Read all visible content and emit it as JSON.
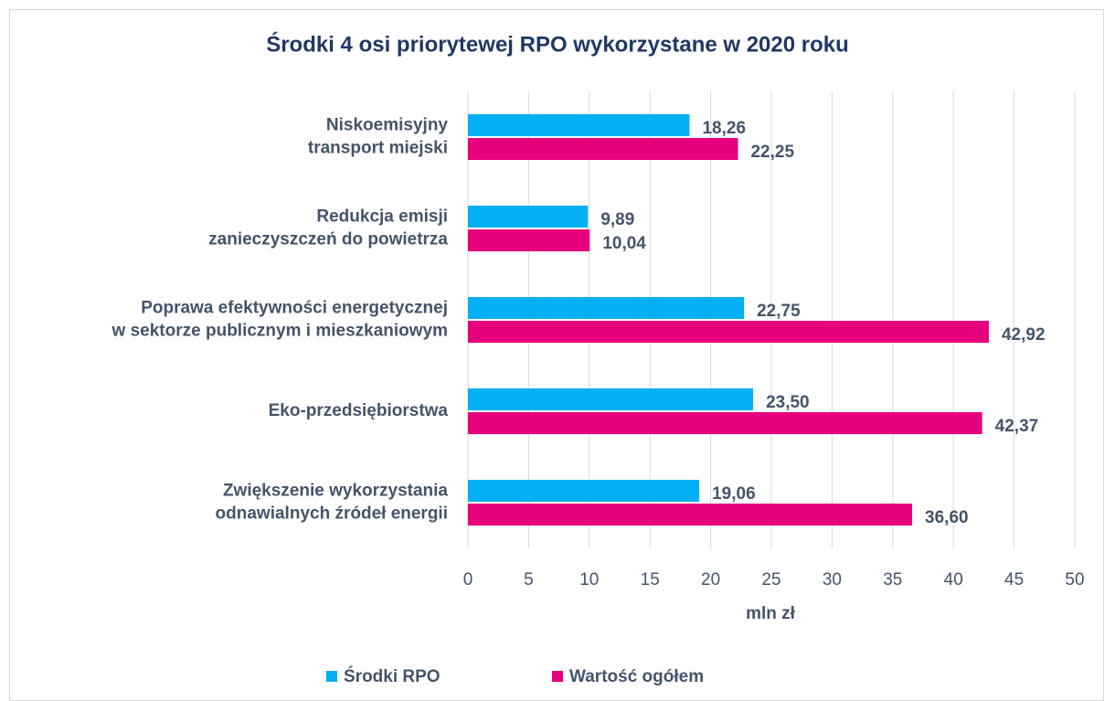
{
  "chart_data": {
    "type": "bar",
    "orientation": "horizontal",
    "title": "Środki 4 osi priorytewej RPO wykorzystane w 2020 roku",
    "categories": [
      [
        "Niskoemisyjny",
        "transport miejski"
      ],
      [
        "Redukcja emisji",
        "zanieczyszczeń do powietrza"
      ],
      [
        "Poprawa efektywności energetycznej",
        "w sektorze publicznym i mieszkaniowym"
      ],
      [
        "Eko-przedsiębiorstwa"
      ],
      [
        "Zwiększenie wykorzystania",
        "odnawialnych źródeł energii"
      ]
    ],
    "series": [
      {
        "name": "Środki RPO",
        "color": "#00b0f0",
        "values": [
          18.26,
          9.89,
          22.75,
          23.5,
          19.06
        ],
        "value_labels": [
          "18,26",
          "9,89",
          "22,75",
          "23,50",
          "19,06"
        ]
      },
      {
        "name": "Wartość ogółem",
        "color": "#e6007e",
        "values": [
          22.25,
          10.04,
          42.92,
          42.37,
          36.6
        ],
        "value_labels": [
          "22,25",
          "10,04",
          "42,92",
          "42,37",
          "36,60"
        ]
      }
    ],
    "xlabel": "mln zł",
    "xlim": [
      0,
      50
    ],
    "xticks": [
      0,
      5,
      10,
      15,
      20,
      25,
      30,
      35,
      40,
      45,
      50
    ],
    "grid": true
  }
}
